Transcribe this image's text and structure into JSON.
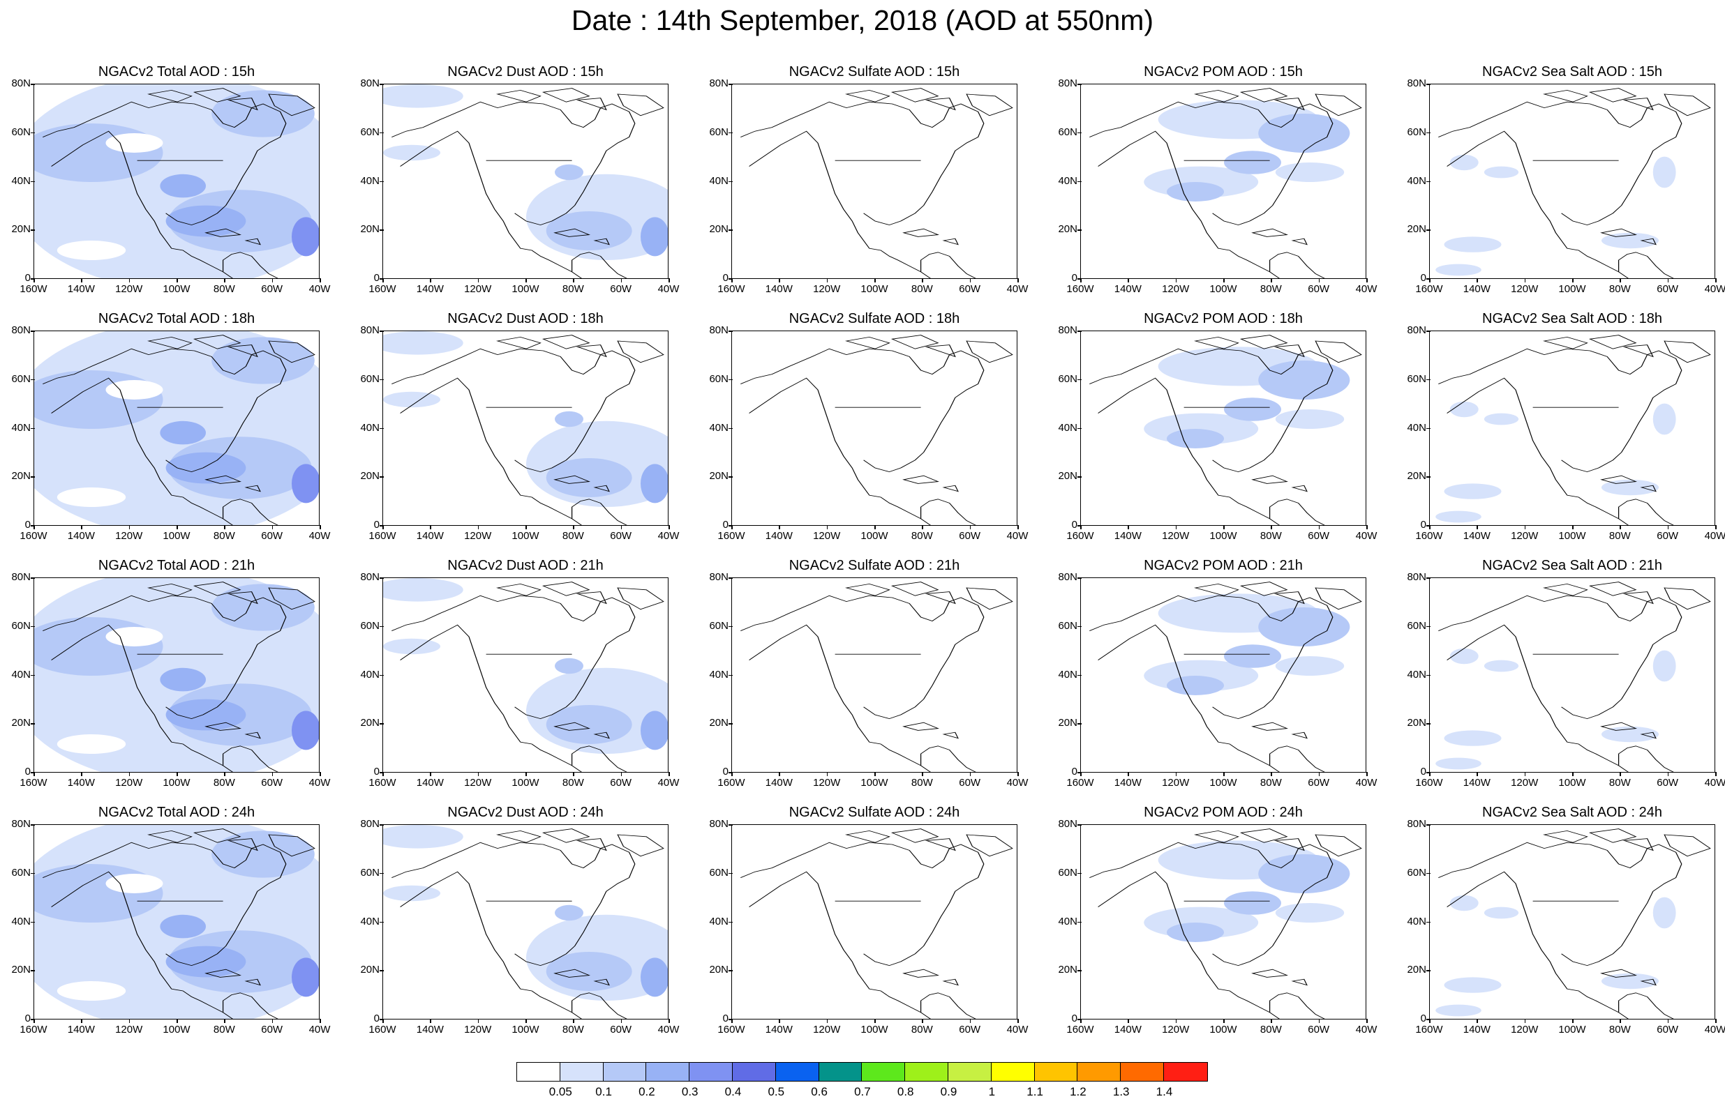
{
  "title": "Date : 14th September, 2018 (AOD at 550nm)",
  "lat_labels": [
    "80N",
    "60N",
    "40N",
    "20N",
    "0"
  ],
  "lon_labels": [
    "160W",
    "140W",
    "120W",
    "100W",
    "80W",
    "60W",
    "40W"
  ],
  "colorbar": {
    "colors": [
      "#ffffff",
      "#d6e2fb",
      "#b5c9f7",
      "#98b2f5",
      "#7f92f2",
      "#606ce6",
      "#0a62f0",
      "#04938a",
      "#5de81c",
      "#9ef01a",
      "#c7f042",
      "#ffff00",
      "#ffc400",
      "#ff9a00",
      "#ff6a00",
      "#ff1f14"
    ],
    "labels": [
      "0.05",
      "0.1",
      "0.2",
      "0.3",
      "0.4",
      "0.5",
      "0.6",
      "0.7",
      "0.8",
      "0.9",
      "1",
      "1.1",
      "1.2",
      "1.3",
      "1.4"
    ]
  },
  "panels": [
    {
      "title": "NGACv2 Total AOD : 15h",
      "species": "total"
    },
    {
      "title": "NGACv2 Dust AOD : 15h",
      "species": "dust"
    },
    {
      "title": "NGACv2 Sulfate AOD : 15h",
      "species": "sulfate"
    },
    {
      "title": "NGACv2 POM AOD : 15h",
      "species": "pom"
    },
    {
      "title": "NGACv2 Sea Salt AOD : 15h",
      "species": "seasalt"
    },
    {
      "title": "NGACv2 Total AOD : 18h",
      "species": "total"
    },
    {
      "title": "NGACv2 Dust AOD : 18h",
      "species": "dust"
    },
    {
      "title": "NGACv2 Sulfate AOD : 18h",
      "species": "sulfate"
    },
    {
      "title": "NGACv2 POM AOD : 18h",
      "species": "pom"
    },
    {
      "title": "NGACv2 Sea Salt AOD : 18h",
      "species": "seasalt"
    },
    {
      "title": "NGACv2 Total AOD : 21h",
      "species": "total"
    },
    {
      "title": "NGACv2 Dust AOD : 21h",
      "species": "dust"
    },
    {
      "title": "NGACv2 Sulfate AOD : 21h",
      "species": "sulfate"
    },
    {
      "title": "NGACv2 POM AOD : 21h",
      "species": "pom"
    },
    {
      "title": "NGACv2 Sea Salt AOD : 21h",
      "species": "seasalt"
    },
    {
      "title": "NGACv2 Total AOD : 24h",
      "species": "total"
    },
    {
      "title": "NGACv2 Dust AOD : 24h",
      "species": "dust"
    },
    {
      "title": "NGACv2 Sulfate AOD : 24h",
      "species": "sulfate"
    },
    {
      "title": "NGACv2 POM AOD : 24h",
      "species": "pom"
    },
    {
      "title": "NGACv2 Sea Salt  AOD : 24h",
      "species": "seasalt"
    }
  ]
}
